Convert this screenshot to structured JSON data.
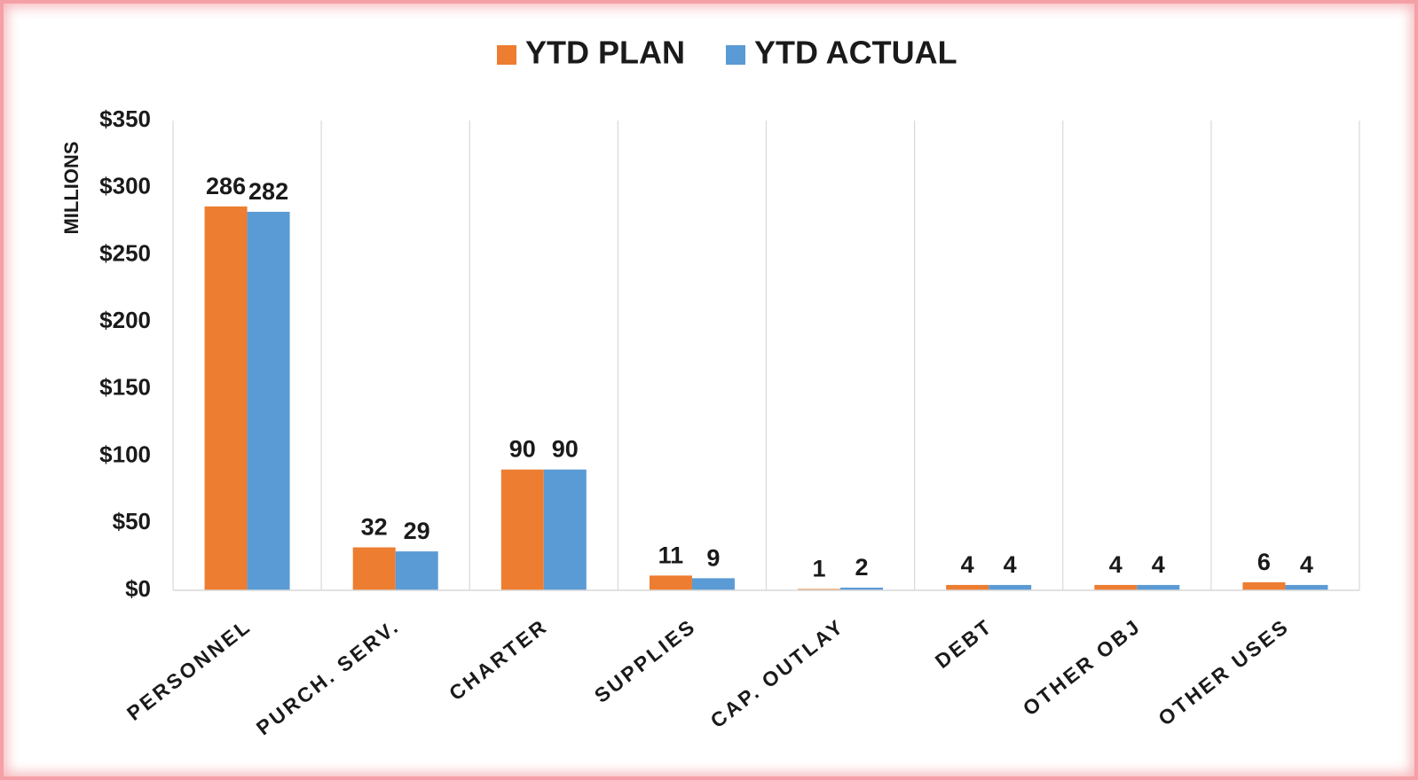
{
  "chart_data": {
    "type": "bar",
    "categories": [
      "PERSONNEL",
      "PURCH. SERV.",
      "CHARTER",
      "SUPPLIES",
      "CAP. OUTLAY",
      "DEBT",
      "OTHER OBJ",
      "OTHER USES"
    ],
    "series": [
      {
        "name": "YTD PLAN",
        "color": "#ED7D31",
        "values": [
          286,
          32,
          90,
          11,
          1,
          4,
          4,
          6
        ]
      },
      {
        "name": "YTD ACTUAL",
        "color": "#5B9BD5",
        "values": [
          282,
          29,
          90,
          9,
          2,
          4,
          4,
          4
        ]
      }
    ],
    "ylabel": "MILLIONS",
    "ylim": [
      0,
      350
    ],
    "yticks": [
      0,
      50,
      100,
      150,
      200,
      250,
      300,
      350
    ],
    "ytick_labels": [
      "$0",
      "$50",
      "$100",
      "$150",
      "$200",
      "$250",
      "$300",
      "$350"
    ],
    "legend_position": "top-center",
    "data_labels": true,
    "grid": "vertical category separators"
  }
}
